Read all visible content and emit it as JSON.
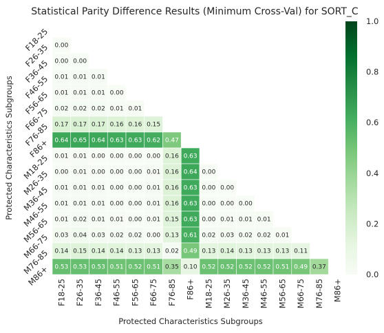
{
  "chart_data": {
    "type": "heatmap",
    "title": "Statistical Parity Difference Results (Minimum Cross-Val) for SORT_C",
    "xlabel": "Protected Characteristics Subgroups",
    "ylabel": "Protected Characteristics Subgroups",
    "categories": [
      "F18-25",
      "F26-35",
      "F36-45",
      "F46-55",
      "F56-65",
      "F66-75",
      "F76-85",
      "F86+",
      "M18-25",
      "M26-35",
      "M36-45",
      "M46-55",
      "M56-65",
      "M66-75",
      "M76-85",
      "M86+"
    ],
    "mask": "upper-triangle-including-diagonal",
    "colormap": "Greens",
    "vmin": 0.0,
    "vmax": 1.0,
    "colorbar_ticks": [
      "0.0",
      "0.2",
      "0.4",
      "0.6",
      "0.8",
      "1.0"
    ],
    "values": [
      [],
      [
        "0.00"
      ],
      [
        "0.00",
        "0.00"
      ],
      [
        "0.01",
        "0.01",
        "0.01"
      ],
      [
        "0.01",
        "0.01",
        "0.01",
        "0.00"
      ],
      [
        "0.02",
        "0.02",
        "0.02",
        "0.01",
        "0.01"
      ],
      [
        "0.17",
        "0.17",
        "0.17",
        "0.16",
        "0.16",
        "0.15"
      ],
      [
        "0.64",
        "0.65",
        "0.64",
        "0.63",
        "0.63",
        "0.62",
        "0.47"
      ],
      [
        "0.01",
        "0.01",
        "0.00",
        "0.00",
        "0.00",
        "0.00",
        "0.16",
        "0.63"
      ],
      [
        "0.00",
        "0.01",
        "0.00",
        "0.00",
        "0.00",
        "0.01",
        "0.16",
        "0.64",
        "0.00"
      ],
      [
        "0.01",
        "0.01",
        "0.01",
        "0.00",
        "0.00",
        "0.01",
        "0.16",
        "0.63",
        "0.00",
        "0.00"
      ],
      [
        "0.01",
        "0.01",
        "0.01",
        "0.00",
        "0.00",
        "0.01",
        "0.16",
        "0.63",
        "0.00",
        "0.00",
        "0.00"
      ],
      [
        "0.01",
        "0.02",
        "0.01",
        "0.01",
        "0.00",
        "0.01",
        "0.15",
        "0.63",
        "0.00",
        "0.01",
        "0.01",
        "0.01"
      ],
      [
        "0.03",
        "0.04",
        "0.03",
        "0.02",
        "0.02",
        "0.00",
        "0.13",
        "0.61",
        "0.02",
        "0.03",
        "0.02",
        "0.02",
        "0.01"
      ],
      [
        "0.14",
        "0.15",
        "0.14",
        "0.14",
        "0.13",
        "0.13",
        "0.02",
        "0.49",
        "0.13",
        "0.14",
        "0.13",
        "0.13",
        "0.13",
        "0.11"
      ],
      [
        "0.53",
        "0.53",
        "0.53",
        "0.51",
        "0.52",
        "0.51",
        "0.35",
        "0.10",
        "0.52",
        "0.52",
        "0.52",
        "0.52",
        "0.51",
        "0.49",
        "0.37"
      ]
    ]
  }
}
